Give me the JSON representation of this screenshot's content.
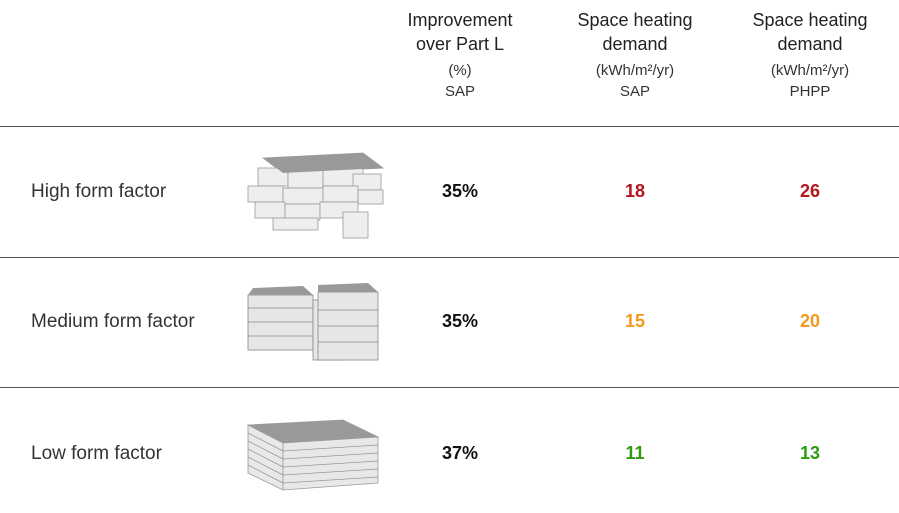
{
  "table": {
    "columns": [
      {
        "title": "Improvement over Part L",
        "unit": "(%)",
        "method": "SAP"
      },
      {
        "title": "Space heating demand",
        "unit": "(kWh/m²/yr)",
        "method": "SAP"
      },
      {
        "title": "Space heating demand",
        "unit": "(kWh/m²/yr)",
        "method": "PHPP"
      }
    ],
    "rows": [
      {
        "label": "High form factor",
        "values": [
          "35%",
          "18",
          "26"
        ],
        "color": "#b5141b"
      },
      {
        "label": "Medium form factor",
        "values": [
          "35%",
          "15",
          "20"
        ],
        "color": "#f29a1b"
      },
      {
        "label": "Low form factor",
        "values": [
          "37%",
          "11",
          "13"
        ],
        "color": "#2f9a12"
      }
    ]
  }
}
